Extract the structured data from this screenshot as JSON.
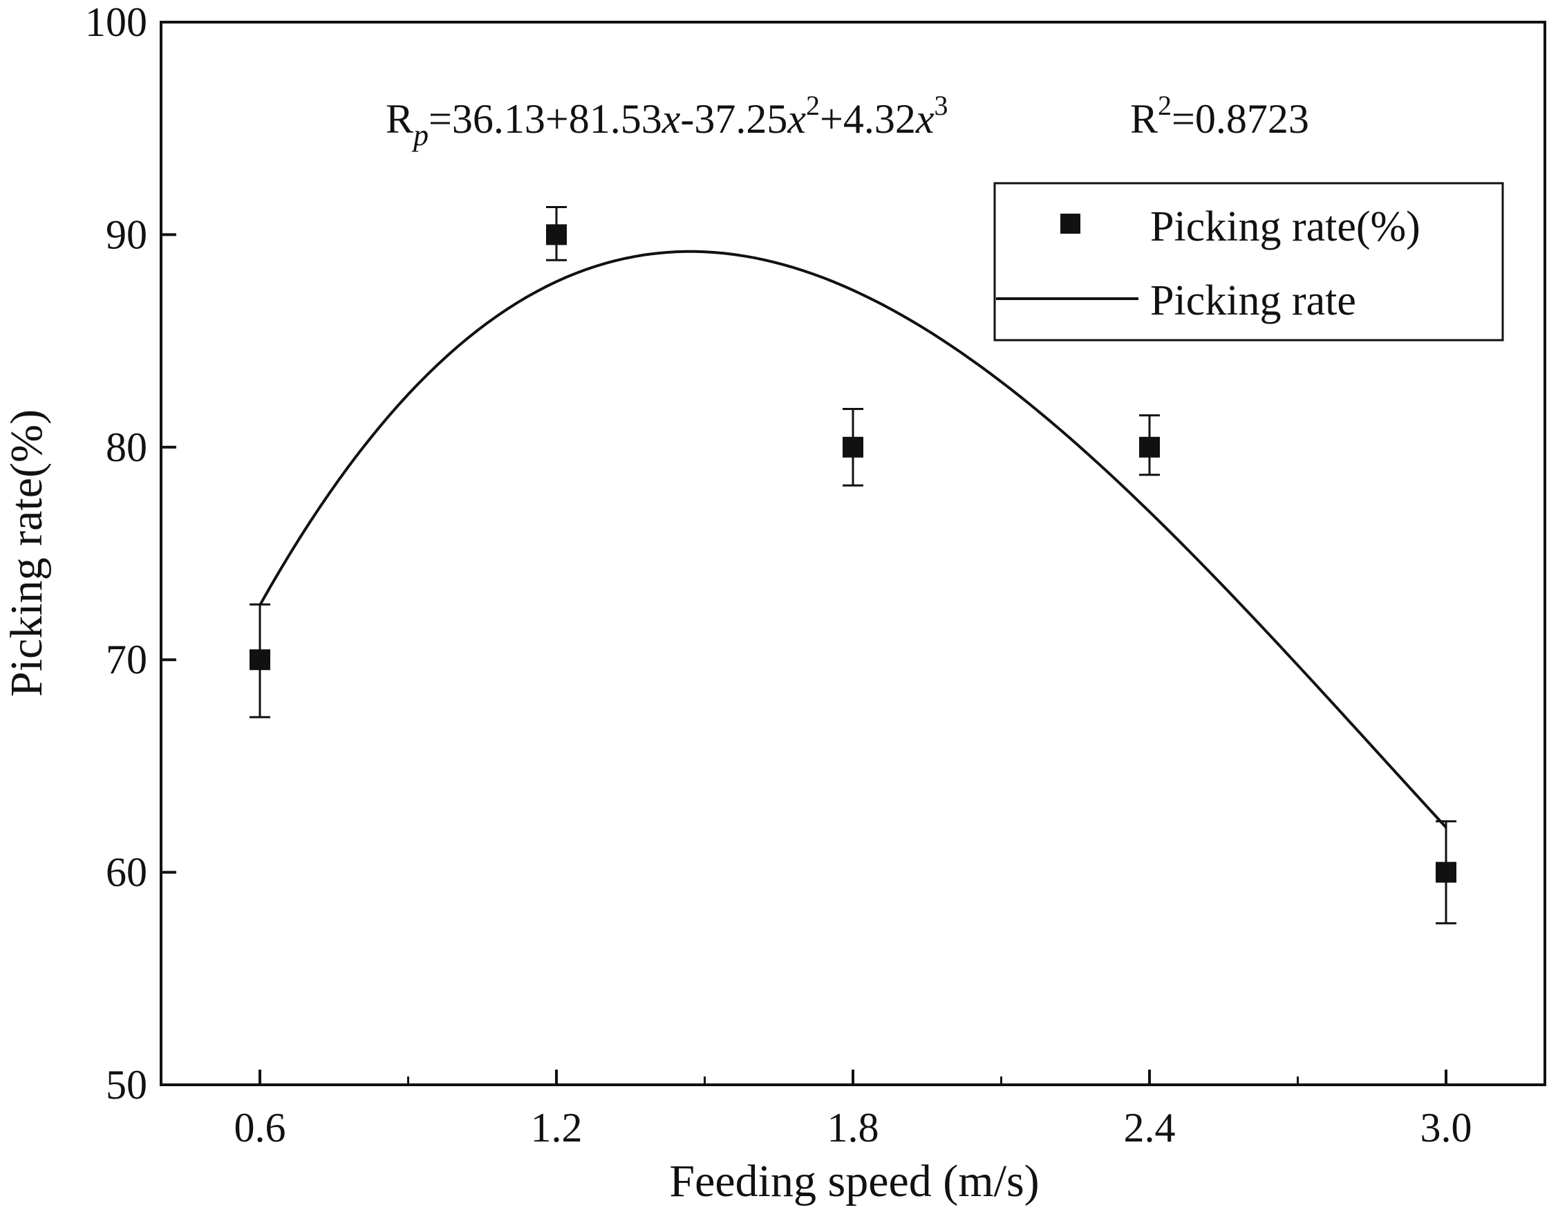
{
  "chart_data": {
    "type": "scatter",
    "xlabel": "Feeding speed (m/s)",
    "ylabel": "Picking rate(%)",
    "xlim": [
      0.4,
      3.2
    ],
    "ylim": [
      50,
      100
    ],
    "x_ticks": [
      "0.6",
      "1.2",
      "1.8",
      "2.4",
      "3.0"
    ],
    "x_tick_values": [
      0.6,
      1.2,
      1.8,
      2.4,
      3.0
    ],
    "x_minor_ticks": [
      0.9,
      1.5,
      2.1,
      2.7
    ],
    "y_ticks": [
      "50",
      "60",
      "70",
      "80",
      "90",
      "100"
    ],
    "y_tick_values": [
      50,
      60,
      70,
      80,
      90,
      100
    ],
    "series": [
      {
        "name": "Picking rate(%)",
        "kind": "points",
        "x": [
          0.6,
          1.2,
          1.8,
          2.4,
          3.0
        ],
        "y": [
          70,
          90,
          80,
          80,
          60
        ],
        "err_upper": [
          72.6,
          91.3,
          81.8,
          81.5,
          62.4
        ],
        "err_lower": [
          67.3,
          88.8,
          78.2,
          78.7,
          57.6
        ]
      },
      {
        "name": "Picking rate",
        "kind": "fit-line",
        "coefficients": [
          36.13,
          81.53,
          -37.25,
          4.32
        ],
        "x_range": [
          0.6,
          3.0
        ]
      }
    ],
    "equation": {
      "lhs_main": "R",
      "lhs_sub": "p",
      "part1": "=36.13+81.53",
      "var1": "x",
      "part2": "-37.25",
      "var2": "x",
      "exp2": "2",
      "part3": "+4.32",
      "var3": "x",
      "exp3": "3",
      "r2_main": "R",
      "r2_sup": "2",
      "r2_value": "=0.8723"
    },
    "legend": {
      "placement": "top-right",
      "items": [
        "Picking rate(%)",
        "Picking rate"
      ]
    }
  }
}
